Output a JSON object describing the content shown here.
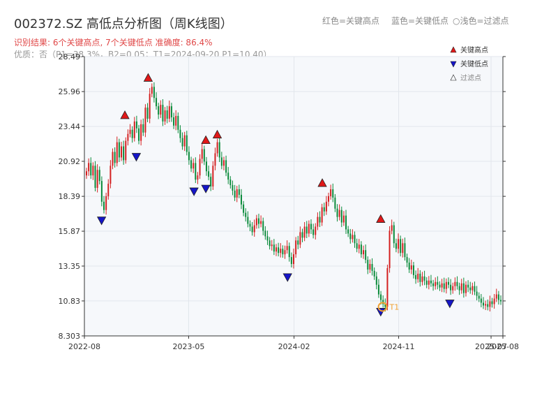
{
  "header": {
    "title": "002372.SZ 高低点分析图（周K线图）",
    "legend_red": "红色=关键高点",
    "legend_blue": "蓝色=关键低点",
    "legend_light": "○浅色=过滤点",
    "result_text": "识别结果: 6个关键高点, 7个关键低点  准确度: 86.4%",
    "quality_text": "优质：否（P1=38.3%，B2=0.05；T1=2024-09-20 P1=10.40）"
  },
  "colors": {
    "up": "#d42020",
    "down": "#0a8a3a",
    "high_marker": "#e01818",
    "low_marker": "#1515c8",
    "t1_marker": "#f0a030",
    "plot_bg": "#f6f8fb",
    "grid": "#e2e6ec"
  },
  "chart_data": {
    "type": "candlestick",
    "y_ticks": [
      "28.49",
      "25.96",
      "23.44",
      "20.92",
      "18.39",
      "15.87",
      "13.35",
      "10.83",
      "8.303"
    ],
    "ylim": [
      8.303,
      28.49
    ],
    "x_ticks": [
      "2022-08",
      "2023-05",
      "2024-02",
      "2024-11",
      "2025-07",
      "2025-08"
    ],
    "xlim": [
      "2022-08-01",
      "2025-08-01"
    ],
    "weekly_close": [
      20.2,
      20.8,
      19.9,
      20.6,
      19.0,
      20.3,
      19.5,
      18.0,
      17.4,
      18.4,
      19.3,
      20.6,
      21.6,
      20.8,
      22.3,
      21.2,
      22.0,
      21.0,
      22.4,
      22.9,
      23.2,
      22.6,
      23.8,
      23.3,
      22.4,
      23.6,
      23.0,
      24.8,
      24.0,
      25.8,
      26.3,
      25.5,
      24.9,
      24.3,
      25.0,
      23.8,
      24.6,
      24.0,
      24.9,
      24.1,
      23.5,
      24.2,
      23.2,
      22.6,
      22.0,
      22.8,
      21.6,
      21.0,
      20.4,
      20.8,
      19.6,
      19.9,
      21.1,
      21.8,
      20.9,
      20.2,
      19.8,
      19.1,
      20.6,
      21.5,
      22.3,
      21.2,
      20.6,
      21.0,
      20.1,
      19.6,
      19.2,
      18.8,
      18.3,
      18.9,
      18.5,
      17.8,
      17.2,
      16.9,
      16.4,
      16.2,
      15.8,
      16.3,
      16.8,
      16.4,
      16.6,
      15.9,
      15.5,
      15.2,
      14.8,
      14.9,
      14.4,
      14.7,
      14.3,
      14.6,
      14.2,
      14.5,
      14.8,
      14.0,
      13.5,
      14.2,
      15.2,
      14.9,
      15.8,
      15.4,
      16.2,
      15.7,
      16.4,
      16.0,
      15.6,
      16.2,
      16.9,
      16.5,
      17.6,
      17.3,
      18.0,
      18.4,
      18.9,
      18.3,
      17.5,
      16.9,
      17.4,
      16.5,
      17.0,
      16.0,
      15.7,
      15.3,
      15.6,
      15.0,
      14.6,
      14.9,
      14.2,
      14.5,
      13.8,
      13.1,
      13.5,
      13.0,
      12.6,
      12.0,
      11.3,
      10.9,
      10.6,
      10.4,
      13.2,
      15.9,
      16.3,
      15.0,
      14.6,
      15.3,
      14.3,
      15.0,
      14.0,
      13.6,
      13.1,
      13.4,
      12.7,
      12.4,
      12.8,
      12.2,
      12.6,
      12.3,
      12.0,
      12.3,
      12.1,
      11.9,
      12.2,
      12.0,
      11.8,
      12.1,
      11.7,
      12.2,
      12.0,
      11.6,
      11.9,
      12.2,
      11.9,
      11.6,
      12.1,
      11.4,
      12.0,
      11.8,
      11.6,
      11.9,
      11.5,
      11.2,
      11.0,
      10.7,
      10.5,
      10.6,
      10.4,
      10.8,
      10.6,
      11.0,
      11.3,
      10.9,
      10.8
    ],
    "key_highs": [
      {
        "date": "2022-11",
        "value": 23.9
      },
      {
        "date": "2023-01",
        "value": 26.6
      },
      {
        "date": "2023-06",
        "value": 22.1
      },
      {
        "date": "2023-07",
        "value": 22.5
      },
      {
        "date": "2024-04",
        "value": 19.0
      },
      {
        "date": "2024-09",
        "value": 16.4
      }
    ],
    "key_lows": [
      {
        "date": "2022-09",
        "value": 17.0
      },
      {
        "date": "2022-12",
        "value": 21.6
      },
      {
        "date": "2023-05",
        "value": 19.1
      },
      {
        "date": "2023-06",
        "value": 19.3
      },
      {
        "date": "2024-01",
        "value": 12.9
      },
      {
        "date": "2024-09",
        "value": 10.4
      },
      {
        "date": "2025-03",
        "value": 11.0
      }
    ],
    "t1": {
      "label": "T1",
      "date": "2024-09-20",
      "value": 10.4
    },
    "legend": [
      "关键高点",
      "关键低点",
      "过滤点"
    ],
    "legend_position": "top-right"
  }
}
